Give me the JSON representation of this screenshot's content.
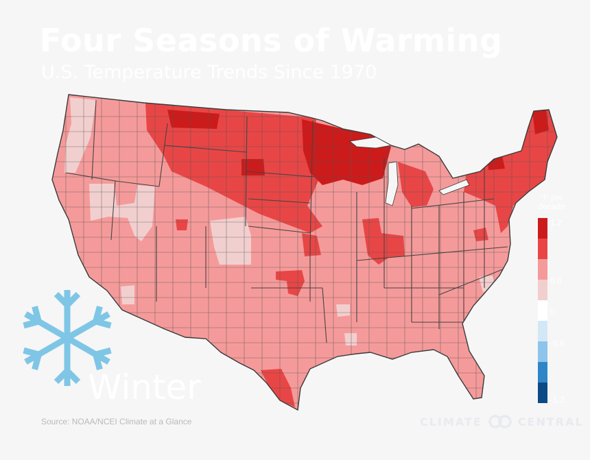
{
  "title": "Four Seasons of Warming",
  "subtitle": "U.S. Temperature Trends Since 1970",
  "season": "Winter",
  "source": "Source:  NOAA/NCEI Climate at a Glance",
  "brand": {
    "left": "CLIMATE",
    "right": "CENTRAL"
  },
  "legend": {
    "unit": "°F per decade",
    "labels": [
      "1.2",
      "0.6",
      "0",
      "-0.6",
      "-1.2"
    ],
    "colors": [
      "#cc1b1b",
      "#e84646",
      "#f59a9a",
      "#f2cfcf",
      "#ffffff",
      "#d3e8f7",
      "#8dc4ec",
      "#2e86c8",
      "#0b4a85"
    ]
  },
  "map_colors": {
    "strongest": "#cc1b1b",
    "strong": "#e84646",
    "moderate": "#f59a9a",
    "weak": "#f2cfcf",
    "boundary": "#555555"
  },
  "icon": {
    "name": "snowflake-icon",
    "color": "#7fc6e6"
  }
}
